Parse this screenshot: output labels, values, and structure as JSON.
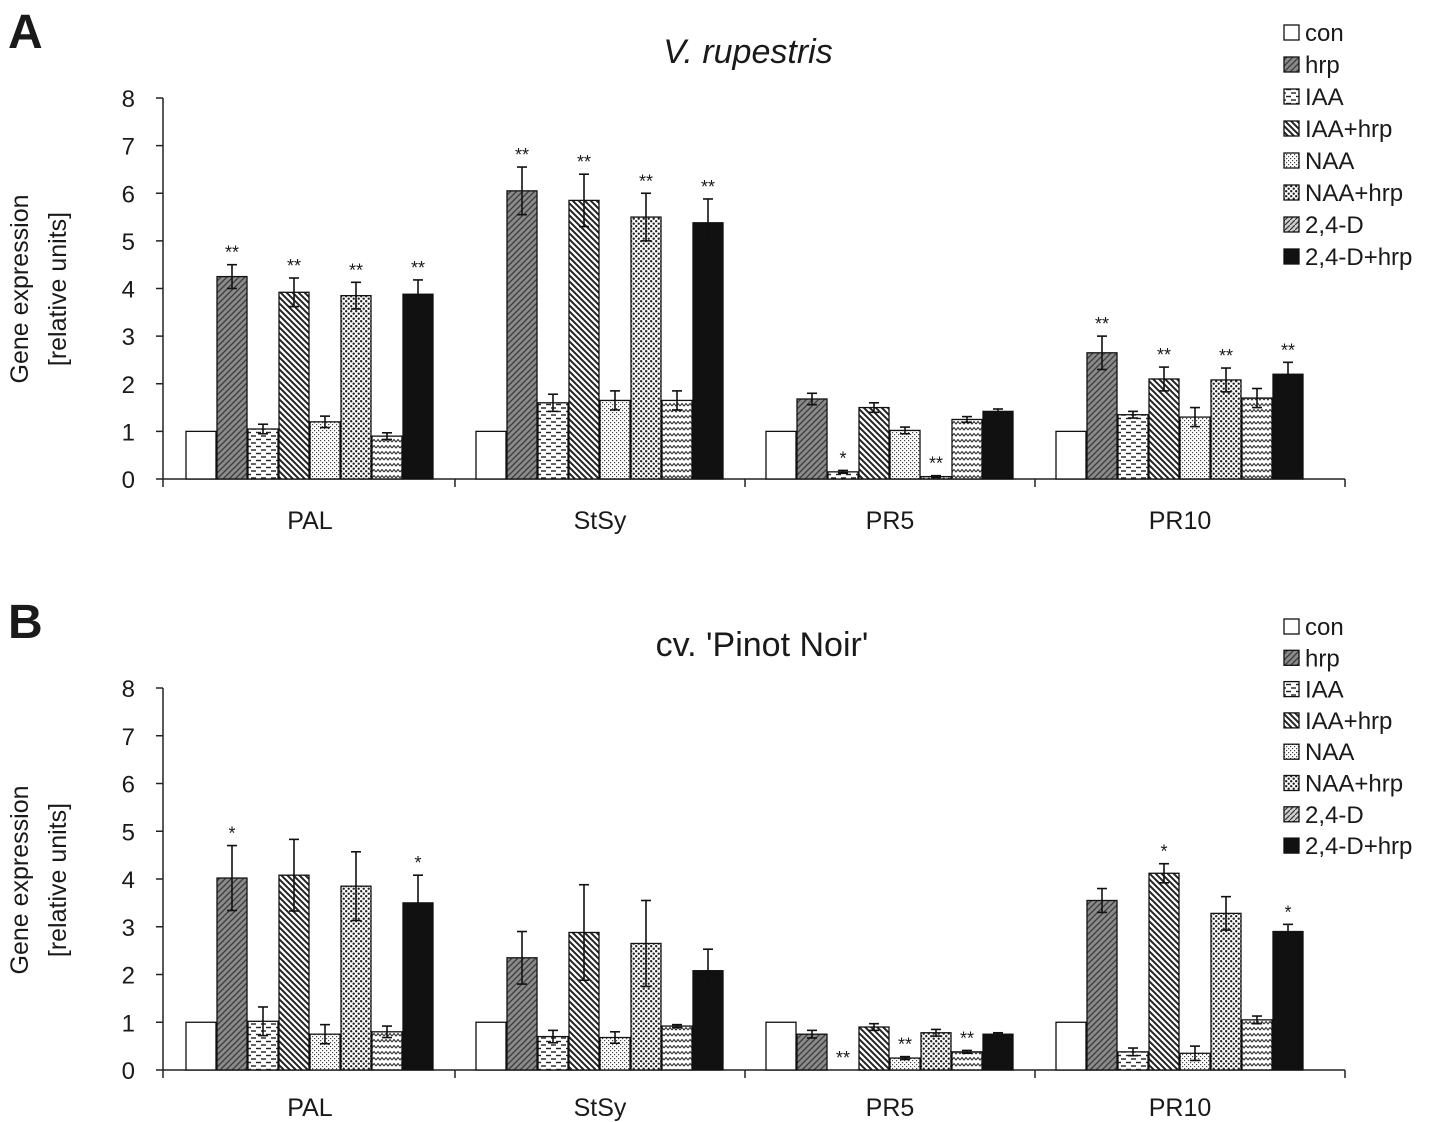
{
  "chart_data": [
    {
      "type": "bar",
      "panel": "A",
      "title": "V. rupestris",
      "title_italic": true,
      "ylabel": [
        "Gene expression",
        "[relative units]"
      ],
      "ylim": [
        0,
        8
      ],
      "yticks": [
        0,
        1,
        2,
        3,
        4,
        5,
        6,
        7,
        8
      ],
      "categories": [
        "PAL",
        "StSy",
        "PR5",
        "PR10"
      ],
      "series": [
        {
          "name": "con",
          "pattern": "white",
          "values": [
            1,
            1,
            1,
            1
          ],
          "errors": [
            0,
            0,
            0,
            0
          ],
          "sig": [
            "",
            "",
            "",
            ""
          ]
        },
        {
          "name": "hrp",
          "pattern": "gray-diag",
          "values": [
            4.25,
            6.05,
            1.68,
            2.65
          ],
          "errors": [
            0.25,
            0.5,
            0.12,
            0.35
          ],
          "sig": [
            "**",
            "**",
            "",
            "**"
          ]
        },
        {
          "name": "IAA",
          "pattern": "dashes",
          "values": [
            1.05,
            1.6,
            0.15,
            1.35
          ],
          "errors": [
            0.1,
            0.18,
            0.03,
            0.07
          ],
          "sig": [
            "",
            "",
            "*",
            ""
          ]
        },
        {
          "name": "IAA+hrp",
          "pattern": "back-diag",
          "values": [
            3.92,
            5.85,
            1.5,
            2.1
          ],
          "errors": [
            0.3,
            0.55,
            0.1,
            0.25
          ],
          "sig": [
            "**",
            "**",
            "",
            "**"
          ]
        },
        {
          "name": "NAA",
          "pattern": "fine-dots",
          "values": [
            1.2,
            1.65,
            1.02,
            1.3
          ],
          "errors": [
            0.12,
            0.2,
            0.07,
            0.2
          ],
          "sig": [
            "",
            "",
            "",
            ""
          ]
        },
        {
          "name": "NAA+hrp",
          "pattern": "coarse-dots",
          "values": [
            3.85,
            5.5,
            0.05,
            2.08
          ],
          "errors": [
            0.28,
            0.5,
            0.02,
            0.25
          ],
          "sig": [
            "**",
            "**",
            "**",
            "**"
          ]
        },
        {
          "name": "2,4-D",
          "pattern": "zigzag",
          "values": [
            0.9,
            1.65,
            1.25,
            1.7
          ],
          "errors": [
            0.07,
            0.2,
            0.06,
            0.2
          ],
          "sig": [
            "",
            "",
            "",
            ""
          ]
        },
        {
          "name": "2,4-D+hrp",
          "pattern": "black",
          "values": [
            3.88,
            5.38,
            1.42,
            2.2
          ],
          "errors": [
            0.3,
            0.5,
            0.05,
            0.25
          ],
          "sig": [
            "**",
            "**",
            "",
            "**"
          ]
        }
      ]
    },
    {
      "type": "bar",
      "panel": "B",
      "title": "cv. 'Pinot Noir'",
      "title_italic": false,
      "ylabel": [
        "Gene expression",
        "[relative units]"
      ],
      "ylim": [
        0,
        8
      ],
      "yticks": [
        0,
        1,
        2,
        3,
        4,
        5,
        6,
        7,
        8
      ],
      "categories": [
        "PAL",
        "StSy",
        "PR5",
        "PR10"
      ],
      "series": [
        {
          "name": "con",
          "pattern": "white",
          "values": [
            1,
            1,
            1,
            1
          ],
          "errors": [
            0,
            0,
            0,
            0
          ],
          "sig": [
            "",
            "",
            "",
            ""
          ]
        },
        {
          "name": "hrp",
          "pattern": "gray-diag",
          "values": [
            4.02,
            2.35,
            0.75,
            3.55
          ],
          "errors": [
            0.68,
            0.55,
            0.08,
            0.25
          ],
          "sig": [
            "*",
            "",
            "",
            ""
          ]
        },
        {
          "name": "IAA",
          "pattern": "dashes",
          "values": [
            1.02,
            0.7,
            0.0,
            0.38
          ],
          "errors": [
            0.3,
            0.13,
            0.0,
            0.08
          ],
          "sig": [
            "",
            "",
            "**",
            ""
          ]
        },
        {
          "name": "IAA+hrp",
          "pattern": "back-diag",
          "values": [
            4.08,
            2.88,
            0.9,
            4.12
          ],
          "errors": [
            0.75,
            1.0,
            0.07,
            0.2
          ],
          "sig": [
            "",
            "",
            "",
            "*"
          ]
        },
        {
          "name": "NAA",
          "pattern": "fine-dots",
          "values": [
            0.75,
            0.68,
            0.25,
            0.35
          ],
          "errors": [
            0.2,
            0.12,
            0.03,
            0.15
          ],
          "sig": [
            "",
            "",
            "**",
            ""
          ]
        },
        {
          "name": "NAA+hrp",
          "pattern": "coarse-dots",
          "values": [
            3.85,
            2.65,
            0.78,
            3.28
          ],
          "errors": [
            0.72,
            0.9,
            0.07,
            0.35
          ],
          "sig": [
            "",
            "",
            "",
            ""
          ]
        },
        {
          "name": "2,4-D",
          "pattern": "zigzag",
          "values": [
            0.8,
            0.92,
            0.38,
            1.05
          ],
          "errors": [
            0.12,
            0.03,
            0.03,
            0.08
          ],
          "sig": [
            "",
            "",
            "**",
            ""
          ]
        },
        {
          "name": "2,4-D+hrp",
          "pattern": "black",
          "values": [
            3.5,
            2.08,
            0.75,
            2.9
          ],
          "errors": [
            0.58,
            0.45,
            0.03,
            0.15
          ],
          "sig": [
            "*",
            "",
            "",
            "*"
          ]
        }
      ]
    }
  ]
}
